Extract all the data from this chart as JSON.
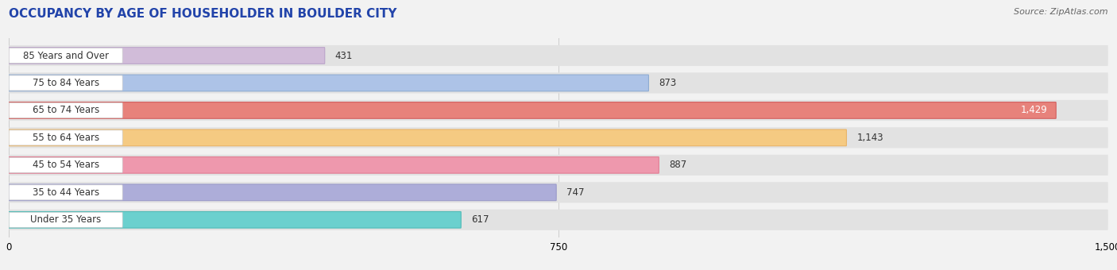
{
  "title": "OCCUPANCY BY AGE OF HOUSEHOLDER IN BOULDER CITY",
  "source": "Source: ZipAtlas.com",
  "categories": [
    "Under 35 Years",
    "35 to 44 Years",
    "45 to 54 Years",
    "55 to 64 Years",
    "65 to 74 Years",
    "75 to 84 Years",
    "85 Years and Over"
  ],
  "values": [
    617,
    747,
    887,
    1143,
    1429,
    873,
    431
  ],
  "bar_colors": [
    "#5ecfcc",
    "#a8a8d8",
    "#f090a8",
    "#f8c878",
    "#e87870",
    "#a8c0e8",
    "#d0b8d8"
  ],
  "bar_edge_colors": [
    "#4ab8b4",
    "#9898c8",
    "#e07890",
    "#e8b060",
    "#d05858",
    "#88a8d0",
    "#b8a0c8"
  ],
  "xlim": [
    0,
    1500
  ],
  "xticks": [
    0,
    750,
    1500
  ],
  "label_color_dark": "#333333",
  "label_color_light": "#ffffff",
  "bg_color": "#f2f2f2",
  "bar_bg_color": "#e2e2e2",
  "title_fontsize": 11,
  "label_fontsize": 8.5,
  "value_fontsize": 8.5,
  "source_fontsize": 8,
  "value_inside_threshold": 1200
}
